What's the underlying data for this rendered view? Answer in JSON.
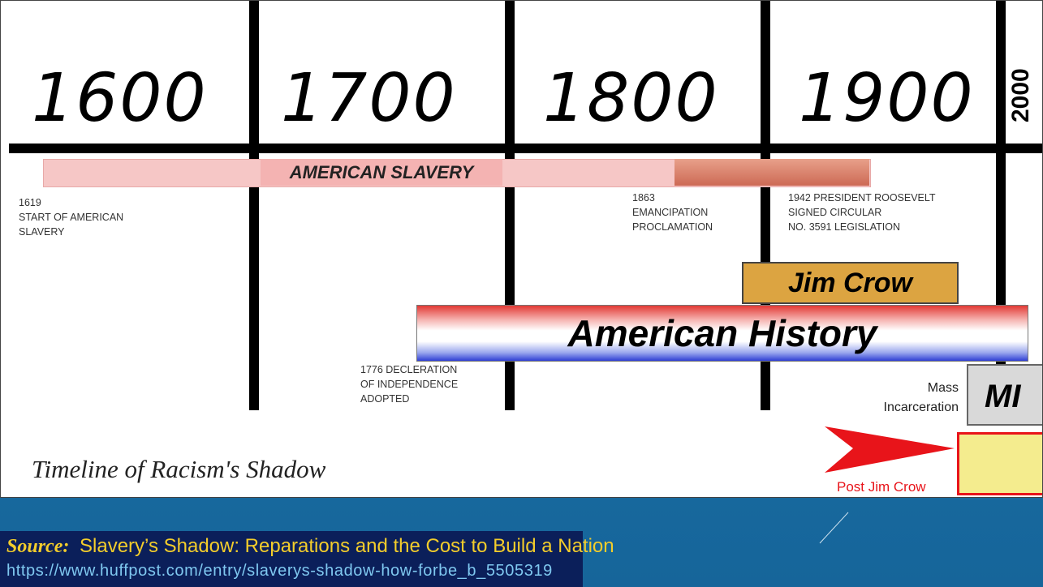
{
  "years": [
    "1600",
    "1700",
    "1800",
    "1900",
    "2000"
  ],
  "slavery_label": "AMERICAN SLAVERY",
  "annotations": [
    {
      "lines": [
        "1619",
        "START OF AMERICAN",
        "SLAVERY"
      ]
    },
    {
      "lines": [
        "1863",
        "EMANCIPATION",
        "PROCLAMATION"
      ]
    },
    {
      "lines": [
        "1942 PRESIDENT ROOSEVELT",
        "SIGNED CIRCULAR",
        "NO. 3591 LEGISLATION"
      ]
    },
    {
      "lines": [
        "1776 DECLERATION",
        "OF INDEPENDENCE",
        "ADOPTED"
      ]
    }
  ],
  "jim_crow": "Jim Crow",
  "american_history": "American History",
  "mass_incarceration": [
    "Mass",
    "Incarceration"
  ],
  "mi": "MI",
  "post_jim_crow": "Post Jim Crow",
  "title": "Timeline of Racism's Shadow",
  "source": {
    "label": "Source:",
    "title": "Slavery’s Shadow: Reparations and the Cost to Build a Nation",
    "url": "https://www.huffpost.com/entry/slaverys-shadow-how-forbe_b_5505319"
  }
}
